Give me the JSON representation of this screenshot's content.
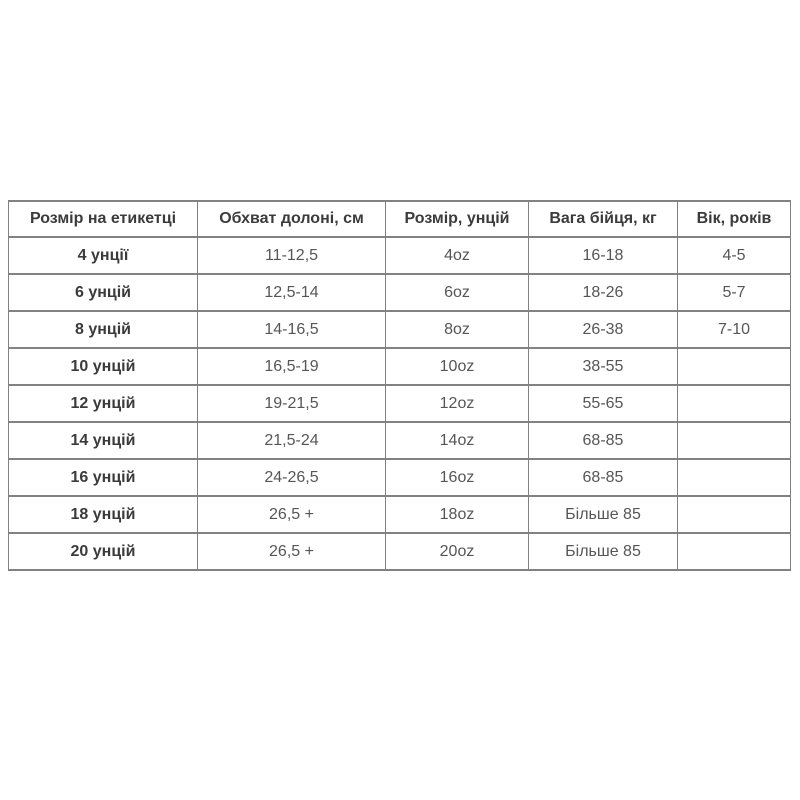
{
  "page": {
    "background": "#ffffff"
  },
  "chart_data": {
    "type": "table",
    "columns": [
      "Розмір на етикетці",
      "Обхват долоні, см",
      "Розмір, унцій",
      "Вага бійця, кг",
      "Вік, років"
    ],
    "rows": [
      [
        "4 унції",
        "11-12,5",
        "4oz",
        "16-18",
        "4-5"
      ],
      [
        "6 унцій",
        "12,5-14",
        "6oz",
        "18-26",
        "5-7"
      ],
      [
        "8 унцій",
        "14-16,5",
        "8oz",
        "26-38",
        "7-10"
      ],
      [
        "10 унцій",
        "16,5-19",
        "10oz",
        "38-55",
        ""
      ],
      [
        "12 унцій",
        "19-21,5",
        "12oz",
        "55-65",
        ""
      ],
      [
        "14 унцій",
        "21,5-24",
        "14oz",
        "68-85",
        ""
      ],
      [
        "16 унцій",
        "24-26,5",
        "16oz",
        "68-85",
        ""
      ],
      [
        "18 унцій",
        "26,5 +",
        "18oz",
        "Більше 85",
        ""
      ],
      [
        "20 унцій",
        "26,5 +",
        "20oz",
        "Більше 85",
        ""
      ]
    ],
    "layout": {
      "legend": "none",
      "grid": "full-borders"
    },
    "colors": {
      "border": "#828282",
      "header_text": "#3b3b3b",
      "cell_text": "#565656",
      "background": "#ffffff"
    }
  }
}
